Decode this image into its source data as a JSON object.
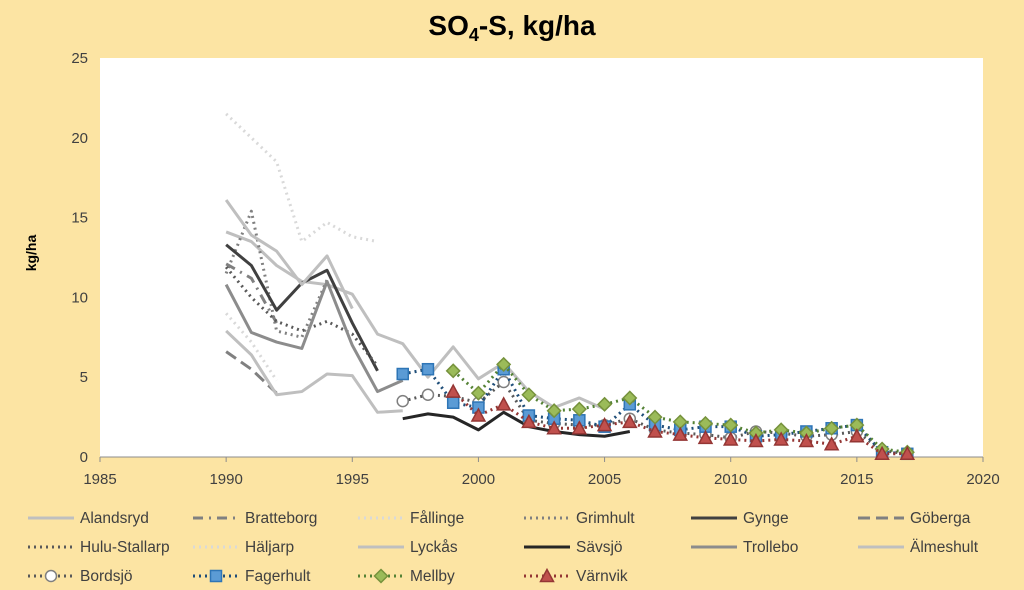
{
  "chart_data": {
    "type": "line",
    "title": "SO",
    "title_sub": "4",
    "title_rest": "-S, kg/ha",
    "xlabel": "",
    "ylabel": "kg/ha",
    "xlim": [
      1985,
      2020
    ],
    "ylim": [
      0,
      25
    ],
    "xticks": [
      1985,
      1990,
      1995,
      2000,
      2005,
      2010,
      2015,
      2020
    ],
    "yticks": [
      0,
      5,
      10,
      15,
      20,
      25
    ],
    "legend_position": "bottom",
    "series": [
      {
        "name": "Alandsryd",
        "color": "#BFBFBF",
        "dash": "solid",
        "width": 3,
        "marker": "none",
        "x": [
          1990,
          1991,
          1992,
          1993,
          1994,
          1995,
          1996,
          1997,
          1998,
          1999,
          2000,
          2001,
          2002,
          2003,
          2004,
          2005
        ],
        "y": [
          14.1,
          13.5,
          12.0,
          11.0,
          10.8,
          10.2,
          7.7,
          7.1,
          5.0,
          6.9,
          4.9,
          5.9,
          4.1,
          3.1,
          3.7,
          3.0
        ]
      },
      {
        "name": "Bratteborg",
        "color": "#808080",
        "dash": "10 6 2 6",
        "width": 3,
        "marker": "none",
        "x": [
          1990,
          1991,
          1992
        ],
        "y": [
          12.1,
          11.2,
          8.4
        ]
      },
      {
        "name": "Fållinge",
        "color": "#D9D9D9",
        "dash": "2 4",
        "width": 3,
        "marker": "none",
        "x": [
          1990,
          1991,
          1992,
          1993,
          1994,
          1995,
          1996
        ],
        "y": [
          21.5,
          20.0,
          18.5,
          13.5,
          14.7,
          13.8,
          13.5
        ]
      },
      {
        "name": "Grimhult",
        "color": "#808080",
        "dash": "2 4",
        "width": 3,
        "marker": "none",
        "x": [
          1990,
          1991,
          1992,
          1993,
          1994
        ],
        "y": [
          11.5,
          15.4,
          7.9,
          7.5,
          11.1
        ]
      },
      {
        "name": "Gynge",
        "color": "#404040",
        "dash": "solid",
        "width": 3,
        "marker": "none",
        "x": [
          1990,
          1991,
          1992,
          1993,
          1994,
          1995,
          1996
        ],
        "y": [
          13.3,
          12.0,
          9.2,
          10.9,
          11.7,
          8.4,
          5.4
        ]
      },
      {
        "name": "Göberga",
        "color": "#808080",
        "dash": "12 6",
        "width": 3,
        "marker": "none",
        "x": [
          1990,
          1991,
          1992
        ],
        "y": [
          6.6,
          5.5,
          4.0
        ]
      },
      {
        "name": "Hulu-Stallarp",
        "color": "#595959",
        "dash": "2 4",
        "width": 3,
        "marker": "none",
        "x": [
          1990,
          1991,
          1992,
          1993,
          1994,
          1995,
          1996
        ],
        "y": [
          11.9,
          10.0,
          8.5,
          7.9,
          8.5,
          7.7,
          5.7
        ]
      },
      {
        "name": "Häljarp",
        "color": "#D9D9D9",
        "dash": "2 4",
        "width": 3,
        "marker": "none",
        "x": [
          1990,
          1991,
          1992
        ],
        "y": [
          9.0,
          7.2,
          4.8
        ]
      },
      {
        "name": "Lyckås",
        "color": "#BFBFBF",
        "dash": "solid",
        "width": 3,
        "marker": "none",
        "x": [
          1990,
          1991,
          1992,
          1993,
          1994,
          1995,
          1996,
          1997
        ],
        "y": [
          7.9,
          6.4,
          3.9,
          4.1,
          5.2,
          5.1,
          2.8,
          2.9
        ]
      },
      {
        "name": "Sävsjö",
        "color": "#262626",
        "dash": "solid",
        "width": 3,
        "marker": "none",
        "x": [
          1997,
          1998,
          1999,
          2000,
          2001,
          2002,
          2003,
          2004,
          2005,
          2006
        ],
        "y": [
          2.4,
          2.7,
          2.5,
          1.7,
          2.8,
          1.9,
          1.6,
          1.4,
          1.3,
          1.6
        ]
      },
      {
        "name": "Trollebo",
        "color": "#8C8C8C",
        "dash": "solid",
        "width": 3,
        "marker": "none",
        "x": [
          1990,
          1991,
          1992,
          1993,
          1994,
          1995,
          1996,
          1997
        ],
        "y": [
          10.8,
          7.8,
          7.2,
          6.8,
          11.0,
          7.0,
          4.1,
          4.8
        ]
      },
      {
        "name": "Älmeshult",
        "color": "#BFBFBF",
        "dash": "solid",
        "width": 3,
        "marker": "none",
        "x": [
          1990,
          1991,
          1992,
          1993,
          1994,
          1995
        ],
        "y": [
          16.1,
          13.9,
          12.9,
          10.8,
          12.6,
          9.3
        ]
      },
      {
        "name": "Bordsjö",
        "color": "#595959",
        "dash": "2 4",
        "width": 3,
        "marker": "circle",
        "marker_fill": "#FFFFFF",
        "marker_stroke": "#7F7F7F",
        "x": [
          1997,
          1998,
          1999,
          2000,
          2001,
          2002,
          2003,
          2004,
          2005,
          2006,
          2007,
          2008,
          2009,
          2010,
          2011,
          2012,
          2013,
          2014,
          2015,
          2016,
          2017
        ],
        "y": [
          3.5,
          3.9,
          3.8,
          3.4,
          4.7,
          2.3,
          2.1,
          2.0,
          2.0,
          2.4,
          1.7,
          1.5,
          1.4,
          1.2,
          1.6,
          1.5,
          1.3,
          1.4,
          1.6,
          0.4,
          0.2
        ]
      },
      {
        "name": "Fagerhult",
        "color": "#1F4E79",
        "dash": "2 4",
        "width": 3,
        "marker": "square",
        "marker_fill": "#5B9BD5",
        "marker_stroke": "#2E75B6",
        "x": [
          1997,
          1998,
          1999,
          2000,
          2001,
          2002,
          2003,
          2004,
          2005,
          2006,
          2007,
          2008,
          2009,
          2010,
          2011,
          2012,
          2013,
          2014,
          2015,
          2016,
          2017
        ],
        "y": [
          5.2,
          5.5,
          3.4,
          3.1,
          5.5,
          2.6,
          2.4,
          2.3,
          1.9,
          3.3,
          2.0,
          1.7,
          1.9,
          1.9,
          1.3,
          1.4,
          1.6,
          1.8,
          2.0,
          0.3,
          0.2
        ]
      },
      {
        "name": "Mellby",
        "color": "#548235",
        "dash": "2 4",
        "width": 3,
        "marker": "diamond",
        "marker_fill": "#9BBB59",
        "marker_stroke": "#76923C",
        "x": [
          1999,
          2000,
          2001,
          2002,
          2003,
          2004,
          2005,
          2006,
          2007,
          2008,
          2009,
          2010,
          2011,
          2012,
          2013,
          2014,
          2015,
          2016,
          2017
        ],
        "y": [
          5.4,
          4.0,
          5.8,
          3.9,
          2.9,
          3.0,
          3.3,
          3.7,
          2.5,
          2.2,
          2.1,
          2.0,
          1.5,
          1.7,
          1.5,
          1.8,
          2.0,
          0.5,
          0.3
        ]
      },
      {
        "name": "Värnvik",
        "color": "#943634",
        "dash": "2 4",
        "width": 3,
        "marker": "triangle",
        "marker_fill": "#C0504D",
        "marker_stroke": "#943634",
        "x": [
          1999,
          2000,
          2001,
          2002,
          2003,
          2004,
          2005,
          2006,
          2007,
          2008,
          2009,
          2010,
          2011,
          2012,
          2013,
          2014,
          2015,
          2016,
          2017
        ],
        "y": [
          4.1,
          2.6,
          3.3,
          2.2,
          1.8,
          1.8,
          2.0,
          2.2,
          1.6,
          1.4,
          1.2,
          1.1,
          1.0,
          1.1,
          1.0,
          0.8,
          1.3,
          0.2,
          0.2
        ]
      }
    ]
  }
}
